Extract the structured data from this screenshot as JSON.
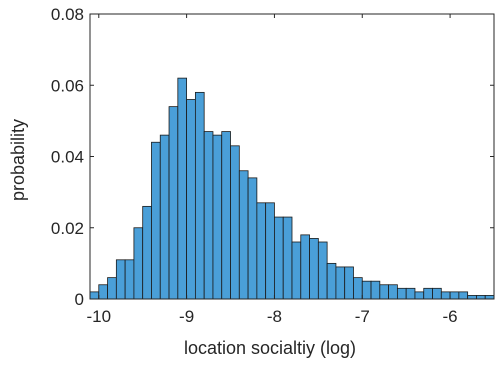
{
  "chart_data": {
    "type": "bar",
    "xlabel": "location socialtiy (log)",
    "ylabel": "probability",
    "xlim": [
      -10.1,
      -5.5
    ],
    "ylim": [
      0,
      0.08
    ],
    "xticks": [
      -10,
      -9,
      -8,
      -7,
      -6
    ],
    "yticks": [
      0,
      0.02,
      0.04,
      0.06,
      0.08
    ],
    "ytick_labels": [
      "0",
      "0.02",
      "0.04",
      "0.06",
      "0.08"
    ],
    "grid": false,
    "bar_color": "#4a9fd8",
    "bin_width": 0.1,
    "x": [
      -10.05,
      -9.95,
      -9.85,
      -9.75,
      -9.65,
      -9.55,
      -9.45,
      -9.35,
      -9.25,
      -9.15,
      -9.05,
      -8.95,
      -8.85,
      -8.75,
      -8.65,
      -8.55,
      -8.45,
      -8.35,
      -8.25,
      -8.15,
      -8.05,
      -7.95,
      -7.85,
      -7.75,
      -7.65,
      -7.55,
      -7.45,
      -7.35,
      -7.25,
      -7.15,
      -7.05,
      -6.95,
      -6.85,
      -6.75,
      -6.65,
      -6.55,
      -6.45,
      -6.35,
      -6.25,
      -6.15,
      -6.05,
      -5.95,
      -5.85,
      -5.75,
      -5.65,
      -5.55
    ],
    "values": [
      0.002,
      0.004,
      0.006,
      0.011,
      0.011,
      0.02,
      0.026,
      0.044,
      0.046,
      0.054,
      0.062,
      0.056,
      0.058,
      0.047,
      0.046,
      0.047,
      0.043,
      0.036,
      0.034,
      0.027,
      0.027,
      0.023,
      0.023,
      0.016,
      0.018,
      0.017,
      0.016,
      0.01,
      0.009,
      0.009,
      0.006,
      0.005,
      0.005,
      0.004,
      0.004,
      0.003,
      0.003,
      0.002,
      0.003,
      0.003,
      0.002,
      0.002,
      0.002,
      0.001,
      0.001,
      0.001
    ]
  }
}
